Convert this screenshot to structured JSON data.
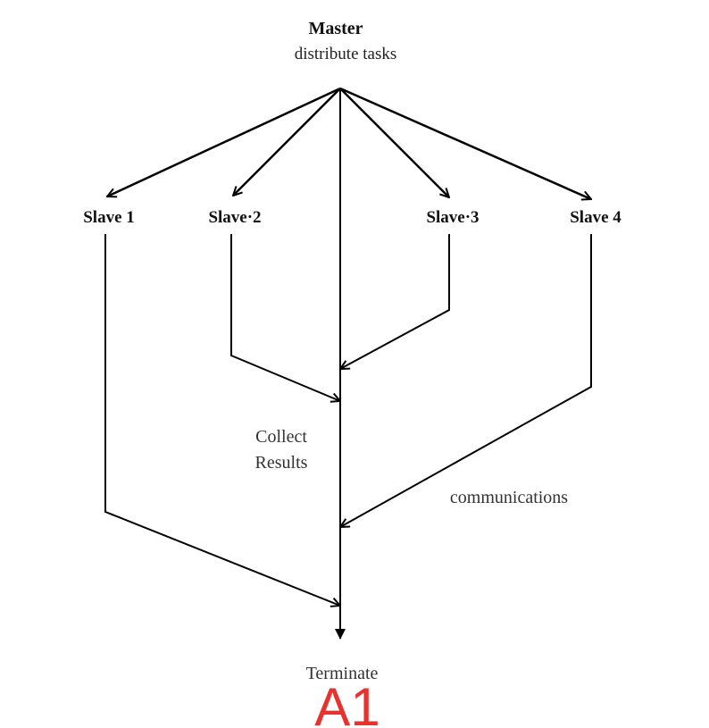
{
  "title": "Master",
  "subtitle": "distribute tasks",
  "slaves": [
    {
      "label": "Slave 1"
    },
    {
      "label": "Slave·2"
    },
    {
      "label": "Slave·3"
    },
    {
      "label": "Slave 4"
    }
  ],
  "collect_label_line1": "Collect",
  "collect_label_line2": "Results",
  "communications_label": "communications",
  "terminate_label": "Terminate",
  "figure_tag": "A1",
  "colors": {
    "line": "#000000",
    "text": "#222222",
    "tag": "#e8322d"
  }
}
